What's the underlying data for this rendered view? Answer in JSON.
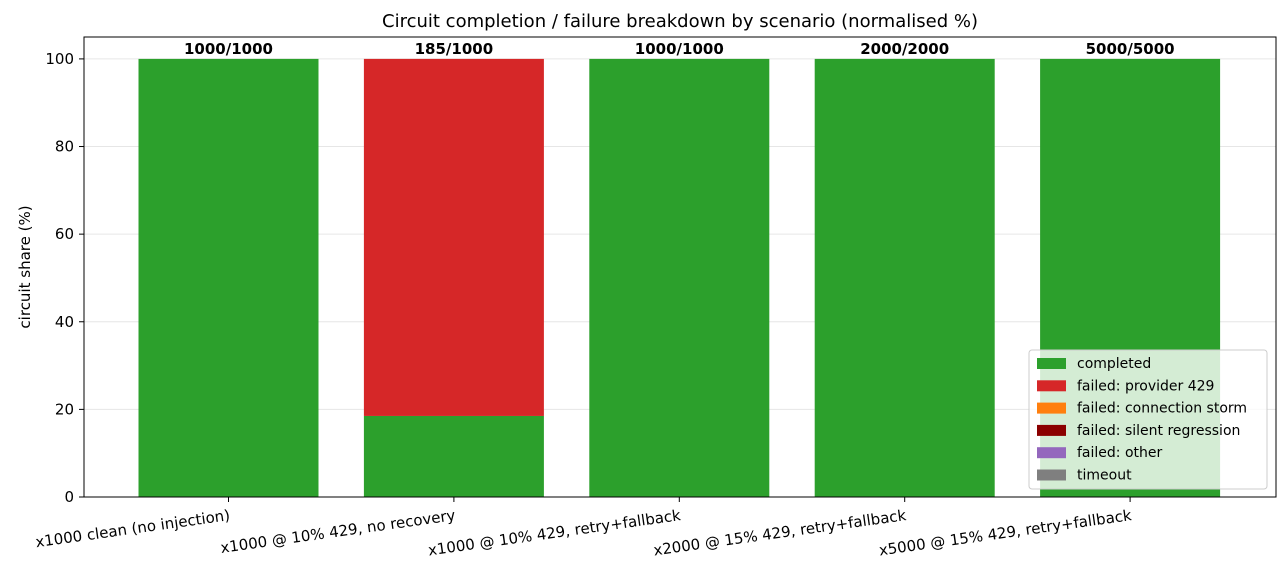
{
  "chart_data": {
    "type": "bar",
    "stacked": true,
    "title": "Circuit completion / failure breakdown by scenario (normalised %)",
    "ylabel": "circuit share (%)",
    "xlabel": "",
    "ylim": [
      0,
      105
    ],
    "yticks": [
      0,
      20,
      40,
      60,
      80,
      100
    ],
    "grid": true,
    "legend_position": "bottom-right",
    "categories": [
      "x1000 clean (no injection)",
      "x1000 @ 10% 429, no recovery",
      "x1000 @ 10% 429, retry+fallback",
      "x2000 @ 15% 429, retry+fallback",
      "x5000 @ 15% 429, retry+fallback"
    ],
    "bar_labels": [
      "1000/1000",
      "185/1000",
      "1000/1000",
      "2000/2000",
      "5000/5000"
    ],
    "series": [
      {
        "name": "completed",
        "color": "#2ca02c",
        "values": [
          100,
          18.5,
          100,
          100,
          100
        ]
      },
      {
        "name": "failed: provider 429",
        "color": "#d62728",
        "values": [
          0,
          81.5,
          0,
          0,
          0
        ]
      },
      {
        "name": "failed: connection storm",
        "color": "#ff7f0e",
        "values": [
          0,
          0,
          0,
          0,
          0
        ]
      },
      {
        "name": "failed: silent regression",
        "color": "#8b0000",
        "values": [
          0,
          0,
          0,
          0,
          0
        ]
      },
      {
        "name": "failed: other",
        "color": "#9467bd",
        "values": [
          0,
          0,
          0,
          0,
          0
        ]
      },
      {
        "name": "timeout",
        "color": "#7f7f7f",
        "values": [
          0,
          0,
          0,
          0,
          0
        ]
      }
    ]
  }
}
